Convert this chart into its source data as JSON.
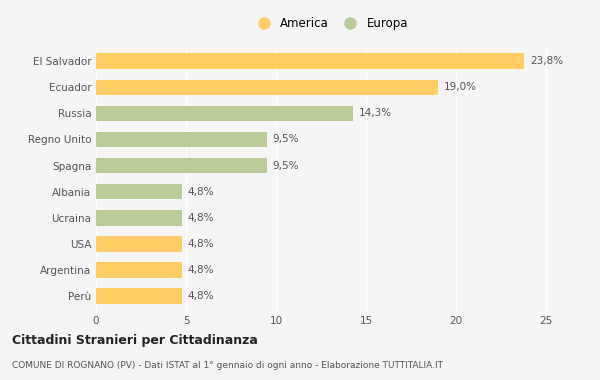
{
  "categories": [
    "El Salvador",
    "Ecuador",
    "Russia",
    "Regno Unito",
    "Spagna",
    "Albania",
    "Ucraina",
    "USA",
    "Argentina",
    "Perù"
  ],
  "values": [
    23.8,
    19.0,
    14.3,
    9.5,
    9.5,
    4.8,
    4.8,
    4.8,
    4.8,
    4.8
  ],
  "labels": [
    "23,8%",
    "19,0%",
    "14,3%",
    "9,5%",
    "9,5%",
    "4,8%",
    "4,8%",
    "4,8%",
    "4,8%",
    "4,8%"
  ],
  "colors": [
    "#FFCC66",
    "#FFCC66",
    "#BBCC99",
    "#BBCC99",
    "#BBCC99",
    "#BBCC99",
    "#BBCC99",
    "#FFCC66",
    "#FFCC66",
    "#FFCC66"
  ],
  "legend": [
    {
      "label": "America",
      "color": "#FFCC66"
    },
    {
      "label": "Europa",
      "color": "#BBCC99"
    }
  ],
  "xlim": [
    0,
    26
  ],
  "xticks": [
    0,
    5,
    10,
    15,
    20,
    25
  ],
  "title": "Cittadini Stranieri per Cittadinanza",
  "subtitle": "COMUNE DI ROGNANO (PV) - Dati ISTAT al 1° gennaio di ogni anno - Elaborazione TUTTITALIA.IT",
  "background_color": "#f5f5f5",
  "bar_height": 0.6
}
